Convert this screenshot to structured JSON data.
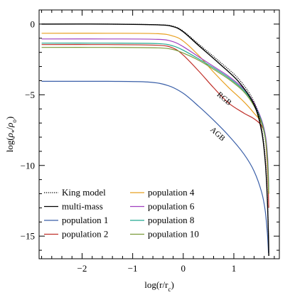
{
  "chart_data": {
    "type": "line",
    "xlabel": "log(r/r_c)",
    "ylabel": "log(ρ*/ρ0)",
    "xlim": [
      -2.85,
      1.9
    ],
    "ylim": [
      -16.6,
      1.0
    ],
    "x_ticks": [
      -2,
      -1,
      0,
      1
    ],
    "x_tick_labels": [
      "−2",
      "−1",
      "0",
      "1"
    ],
    "y_ticks": [
      0,
      -5,
      -10,
      -15
    ],
    "y_tick_labels": [
      "0",
      "−5",
      "−10",
      "−15"
    ],
    "grid": false,
    "legend_position": "bottom-left",
    "annotations": [
      {
        "text": "RGB",
        "x": 0.78,
        "y": -5.4
      },
      {
        "text": "AGB",
        "x": 0.65,
        "y": -7.9
      }
    ],
    "series": [
      {
        "name": "King model",
        "color": "#000000",
        "dash": "dotted",
        "points": [
          [
            -2.8,
            0.0
          ],
          [
            -1.5,
            0.0
          ],
          [
            -0.5,
            -0.05
          ],
          [
            -0.2,
            -0.15
          ],
          [
            0.0,
            -0.5
          ],
          [
            0.3,
            -1.4
          ],
          [
            0.7,
            -2.6
          ],
          [
            1.1,
            -3.9
          ],
          [
            1.4,
            -5.5
          ],
          [
            1.55,
            -7.4
          ],
          [
            1.62,
            -9.5
          ],
          [
            1.66,
            -12.0
          ],
          [
            1.685,
            -15.0
          ],
          [
            1.69,
            -16.4
          ]
        ]
      },
      {
        "name": "multi-mass",
        "color": "#000000",
        "dash": "solid",
        "points": [
          [
            -2.8,
            0.0
          ],
          [
            -1.5,
            0.0
          ],
          [
            -0.5,
            -0.05
          ],
          [
            -0.2,
            -0.18
          ],
          [
            0.0,
            -0.55
          ],
          [
            0.3,
            -1.5
          ],
          [
            0.7,
            -2.75
          ],
          [
            1.1,
            -4.1
          ],
          [
            1.4,
            -5.7
          ],
          [
            1.55,
            -7.6
          ],
          [
            1.62,
            -9.7
          ],
          [
            1.66,
            -12.2
          ],
          [
            1.685,
            -15.0
          ],
          [
            1.69,
            -16.4
          ]
        ]
      },
      {
        "name": "population 1",
        "color": "#3a5fa8",
        "dash": "solid",
        "points": [
          [
            -2.8,
            -4.05
          ],
          [
            -1.5,
            -4.05
          ],
          [
            -0.7,
            -4.1
          ],
          [
            -0.3,
            -4.35
          ],
          [
            0.0,
            -4.9
          ],
          [
            0.3,
            -5.8
          ],
          [
            0.6,
            -6.8
          ],
          [
            0.9,
            -7.9
          ],
          [
            1.2,
            -9.2
          ],
          [
            1.4,
            -10.4
          ],
          [
            1.55,
            -11.9
          ],
          [
            1.62,
            -13.2
          ],
          [
            1.665,
            -14.9
          ],
          [
            1.685,
            -16.2
          ]
        ]
      },
      {
        "name": "population 2",
        "color": "#c0302a",
        "dash": "solid",
        "points": [
          [
            -2.8,
            -1.45
          ],
          [
            -1.5,
            -1.45
          ],
          [
            -0.5,
            -1.5
          ],
          [
            -0.2,
            -1.7
          ],
          [
            0.0,
            -2.2
          ],
          [
            0.3,
            -3.3
          ],
          [
            0.6,
            -4.5
          ],
          [
            0.9,
            -5.6
          ],
          [
            1.2,
            -6.3
          ],
          [
            1.4,
            -6.7
          ],
          [
            1.55,
            -7.2
          ],
          [
            1.62,
            -8.0
          ],
          [
            1.66,
            -9.8
          ],
          [
            1.68,
            -11.5
          ],
          [
            1.69,
            -13.0
          ]
        ]
      },
      {
        "name": "population 4",
        "color": "#e8a020",
        "dash": "solid",
        "points": [
          [
            -2.8,
            -0.65
          ],
          [
            -1.5,
            -0.65
          ],
          [
            -0.5,
            -0.68
          ],
          [
            -0.2,
            -0.85
          ],
          [
            0.0,
            -1.2
          ],
          [
            0.3,
            -2.2
          ],
          [
            0.6,
            -3.4
          ],
          [
            0.9,
            -4.5
          ],
          [
            1.2,
            -5.5
          ],
          [
            1.4,
            -6.3
          ],
          [
            1.55,
            -7.0
          ],
          [
            1.63,
            -8.2
          ],
          [
            1.67,
            -10.0
          ],
          [
            1.69,
            -12.0
          ]
        ]
      },
      {
        "name": "population 6",
        "color": "#a040c0",
        "dash": "solid",
        "points": [
          [
            -2.8,
            -1.05
          ],
          [
            -1.5,
            -1.05
          ],
          [
            -0.5,
            -1.08
          ],
          [
            -0.2,
            -1.25
          ],
          [
            0.0,
            -1.6
          ],
          [
            0.3,
            -2.3
          ],
          [
            0.6,
            -3.0
          ],
          [
            0.9,
            -3.7
          ],
          [
            1.2,
            -4.6
          ],
          [
            1.4,
            -5.6
          ],
          [
            1.55,
            -6.8
          ],
          [
            1.63,
            -8.0
          ],
          [
            1.67,
            -9.5
          ],
          [
            1.69,
            -11.5
          ]
        ]
      },
      {
        "name": "population 8",
        "color": "#20a890",
        "dash": "solid",
        "points": [
          [
            -2.8,
            -1.35
          ],
          [
            -1.5,
            -1.35
          ],
          [
            -0.5,
            -1.38
          ],
          [
            -0.2,
            -1.55
          ],
          [
            0.0,
            -1.85
          ],
          [
            0.3,
            -2.45
          ],
          [
            0.6,
            -3.1
          ],
          [
            0.9,
            -3.8
          ],
          [
            1.2,
            -4.7
          ],
          [
            1.4,
            -5.7
          ],
          [
            1.55,
            -6.9
          ],
          [
            1.63,
            -8.2
          ],
          [
            1.67,
            -9.8
          ],
          [
            1.69,
            -11.7
          ]
        ]
      },
      {
        "name": "population 10",
        "color": "#7a9a3a",
        "dash": "solid",
        "points": [
          [
            -2.8,
            -1.65
          ],
          [
            -1.5,
            -1.65
          ],
          [
            -0.5,
            -1.68
          ],
          [
            -0.2,
            -1.8
          ],
          [
            0.0,
            -2.05
          ],
          [
            0.3,
            -2.55
          ],
          [
            0.6,
            -3.2
          ],
          [
            0.9,
            -3.9
          ],
          [
            1.2,
            -4.8
          ],
          [
            1.4,
            -5.8
          ],
          [
            1.55,
            -7.0
          ],
          [
            1.63,
            -8.3
          ],
          [
            1.67,
            -10.0
          ],
          [
            1.69,
            -12.0
          ]
        ]
      }
    ]
  }
}
